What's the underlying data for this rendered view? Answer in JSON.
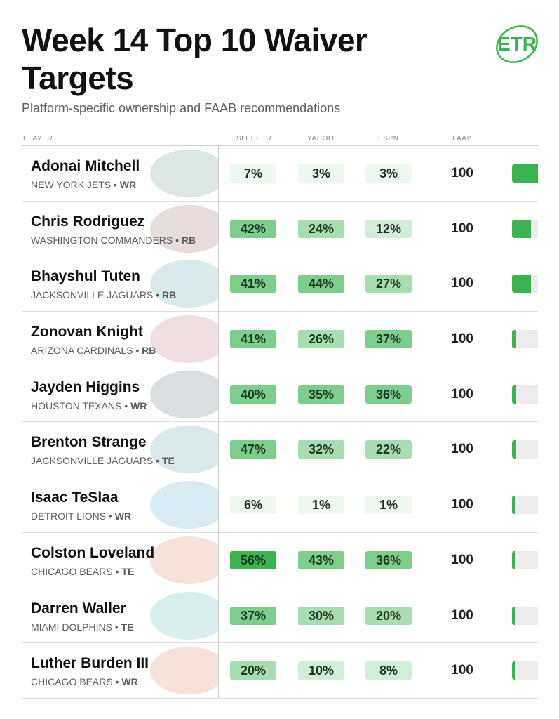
{
  "title": "Week 14 Top 10 Waiver Targets",
  "subtitle": "Platform-specific ownership and FAAB recommendations",
  "logo_text": "ETR",
  "columns": {
    "player": "PLAYER",
    "sleeper": "SLEEPER",
    "yahoo": "YAHOO",
    "espn": "ESPN",
    "faab": "FAAB"
  },
  "colors": {
    "accent": "#3cb351"
  },
  "players": [
    {
      "name": "Adonai Mitchell",
      "team": "NEW YORK JETS",
      "pos": "WR",
      "sleeper": "7%",
      "yahoo": "3%",
      "espn": "3%",
      "faab": "100",
      "fill": 1.0,
      "team_art": "jets-logo"
    },
    {
      "name": "Chris Rodriguez",
      "team": "WASHINGTON COMMANDERS",
      "pos": "RB",
      "sleeper": "42%",
      "yahoo": "24%",
      "espn": "12%",
      "faab": "100",
      "fill": 0.72,
      "team_art": "commanders-logo"
    },
    {
      "name": "Bhayshul Tuten",
      "team": "JACKSONVILLE JAGUARS",
      "pos": "RB",
      "sleeper": "41%",
      "yahoo": "44%",
      "espn": "27%",
      "faab": "100",
      "fill": 0.72,
      "team_art": "jaguars-logo"
    },
    {
      "name": "Zonovan Knight",
      "team": "ARIZONA CARDINALS",
      "pos": "RB",
      "sleeper": "41%",
      "yahoo": "26%",
      "espn": "37%",
      "faab": "100",
      "fill": 0.15,
      "team_art": "cardinals-logo"
    },
    {
      "name": "Jayden Higgins",
      "team": "HOUSTON TEXANS",
      "pos": "WR",
      "sleeper": "40%",
      "yahoo": "35%",
      "espn": "36%",
      "faab": "100",
      "fill": 0.15,
      "team_art": "texans-logo"
    },
    {
      "name": "Brenton Strange",
      "team": "JACKSONVILLE JAGUARS",
      "pos": "TE",
      "sleeper": "47%",
      "yahoo": "32%",
      "espn": "22%",
      "faab": "100",
      "fill": 0.15,
      "team_art": "jaguars-logo"
    },
    {
      "name": "Isaac TeSlaa",
      "team": "DETROIT LIONS",
      "pos": "WR",
      "sleeper": "6%",
      "yahoo": "1%",
      "espn": "1%",
      "faab": "100",
      "fill": 0.1,
      "team_art": "lions-logo"
    },
    {
      "name": "Colston Loveland",
      "team": "CHICAGO BEARS",
      "pos": "TE",
      "sleeper": "56%",
      "yahoo": "43%",
      "espn": "36%",
      "faab": "100",
      "fill": 0.1,
      "team_art": "bears-logo"
    },
    {
      "name": "Darren Waller",
      "team": "MIAMI DOLPHINS",
      "pos": "TE",
      "sleeper": "37%",
      "yahoo": "30%",
      "espn": "20%",
      "faab": "100",
      "fill": 0.1,
      "team_art": "dolphins-logo"
    },
    {
      "name": "Luther Burden III",
      "team": "CHICAGO BEARS",
      "pos": "WR",
      "sleeper": "20%",
      "yahoo": "10%",
      "espn": "8%",
      "faab": "100",
      "fill": 0.1,
      "team_art": "bears-logo"
    }
  ]
}
